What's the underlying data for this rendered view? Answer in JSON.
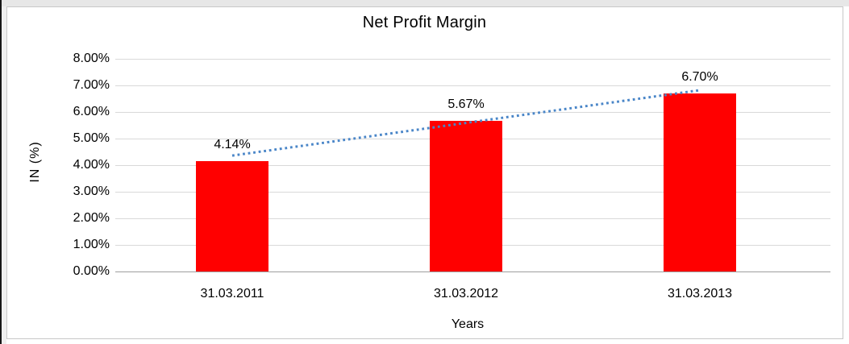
{
  "chart_data": {
    "type": "bar",
    "title": "Net Profit Margin",
    "xlabel": "Years",
    "ylabel": "IN (%)",
    "categories": [
      "31.03.2011",
      "31.03.2012",
      "31.03.2013"
    ],
    "values": [
      4.14,
      5.67,
      6.7
    ],
    "data_labels": [
      "4.14%",
      "5.67%",
      "6.70%"
    ],
    "y_ticks": [
      "8.00%",
      "7.00%",
      "6.00%",
      "5.00%",
      "4.00%",
      "3.00%",
      "2.00%",
      "1.00%",
      "0.00%"
    ],
    "ylim": [
      0,
      8
    ],
    "grid": "horizontal",
    "legend": "none",
    "bar_color": "#FF0000",
    "trendline": {
      "type": "linear",
      "style": "dotted",
      "color": "#4A86C8",
      "from_value": 4.36,
      "to_value": 6.82
    }
  }
}
